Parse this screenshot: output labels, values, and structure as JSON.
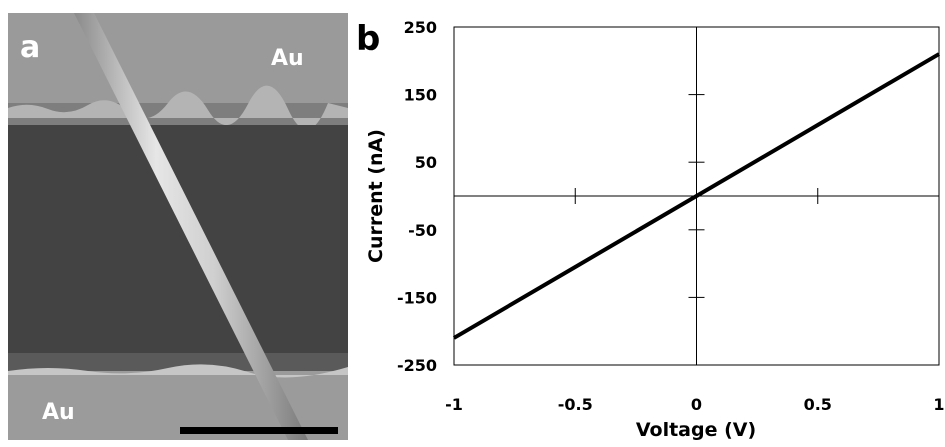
{
  "panel_a": {
    "letter": "a",
    "top_electrode_label": "Au",
    "bottom_electrode_label": "Au"
  },
  "panel_b": {
    "letter": "b"
  },
  "chart_data": {
    "type": "line",
    "xlabel": "Voltage (V)",
    "ylabel": "Current (nA)",
    "xlim": [
      -1,
      1
    ],
    "ylim": [
      -250,
      250
    ],
    "x_ticks": [
      -1,
      -0.5,
      0,
      0.5,
      1
    ],
    "x_tick_labels": [
      "-1",
      "-0.5",
      "0",
      "0.5",
      "1"
    ],
    "y_ticks": [
      250,
      150,
      50,
      -50,
      -150,
      -250
    ],
    "y_tick_labels": [
      "250",
      "150",
      "50",
      "-50",
      "-150",
      "-250"
    ],
    "grid": false,
    "axes_through_origin": true,
    "series": [
      {
        "color": "#000000",
        "x": [
          -1,
          -0.5,
          0,
          0.5,
          1
        ],
        "y": [
          -210,
          -105,
          0,
          105,
          210
        ]
      }
    ]
  }
}
